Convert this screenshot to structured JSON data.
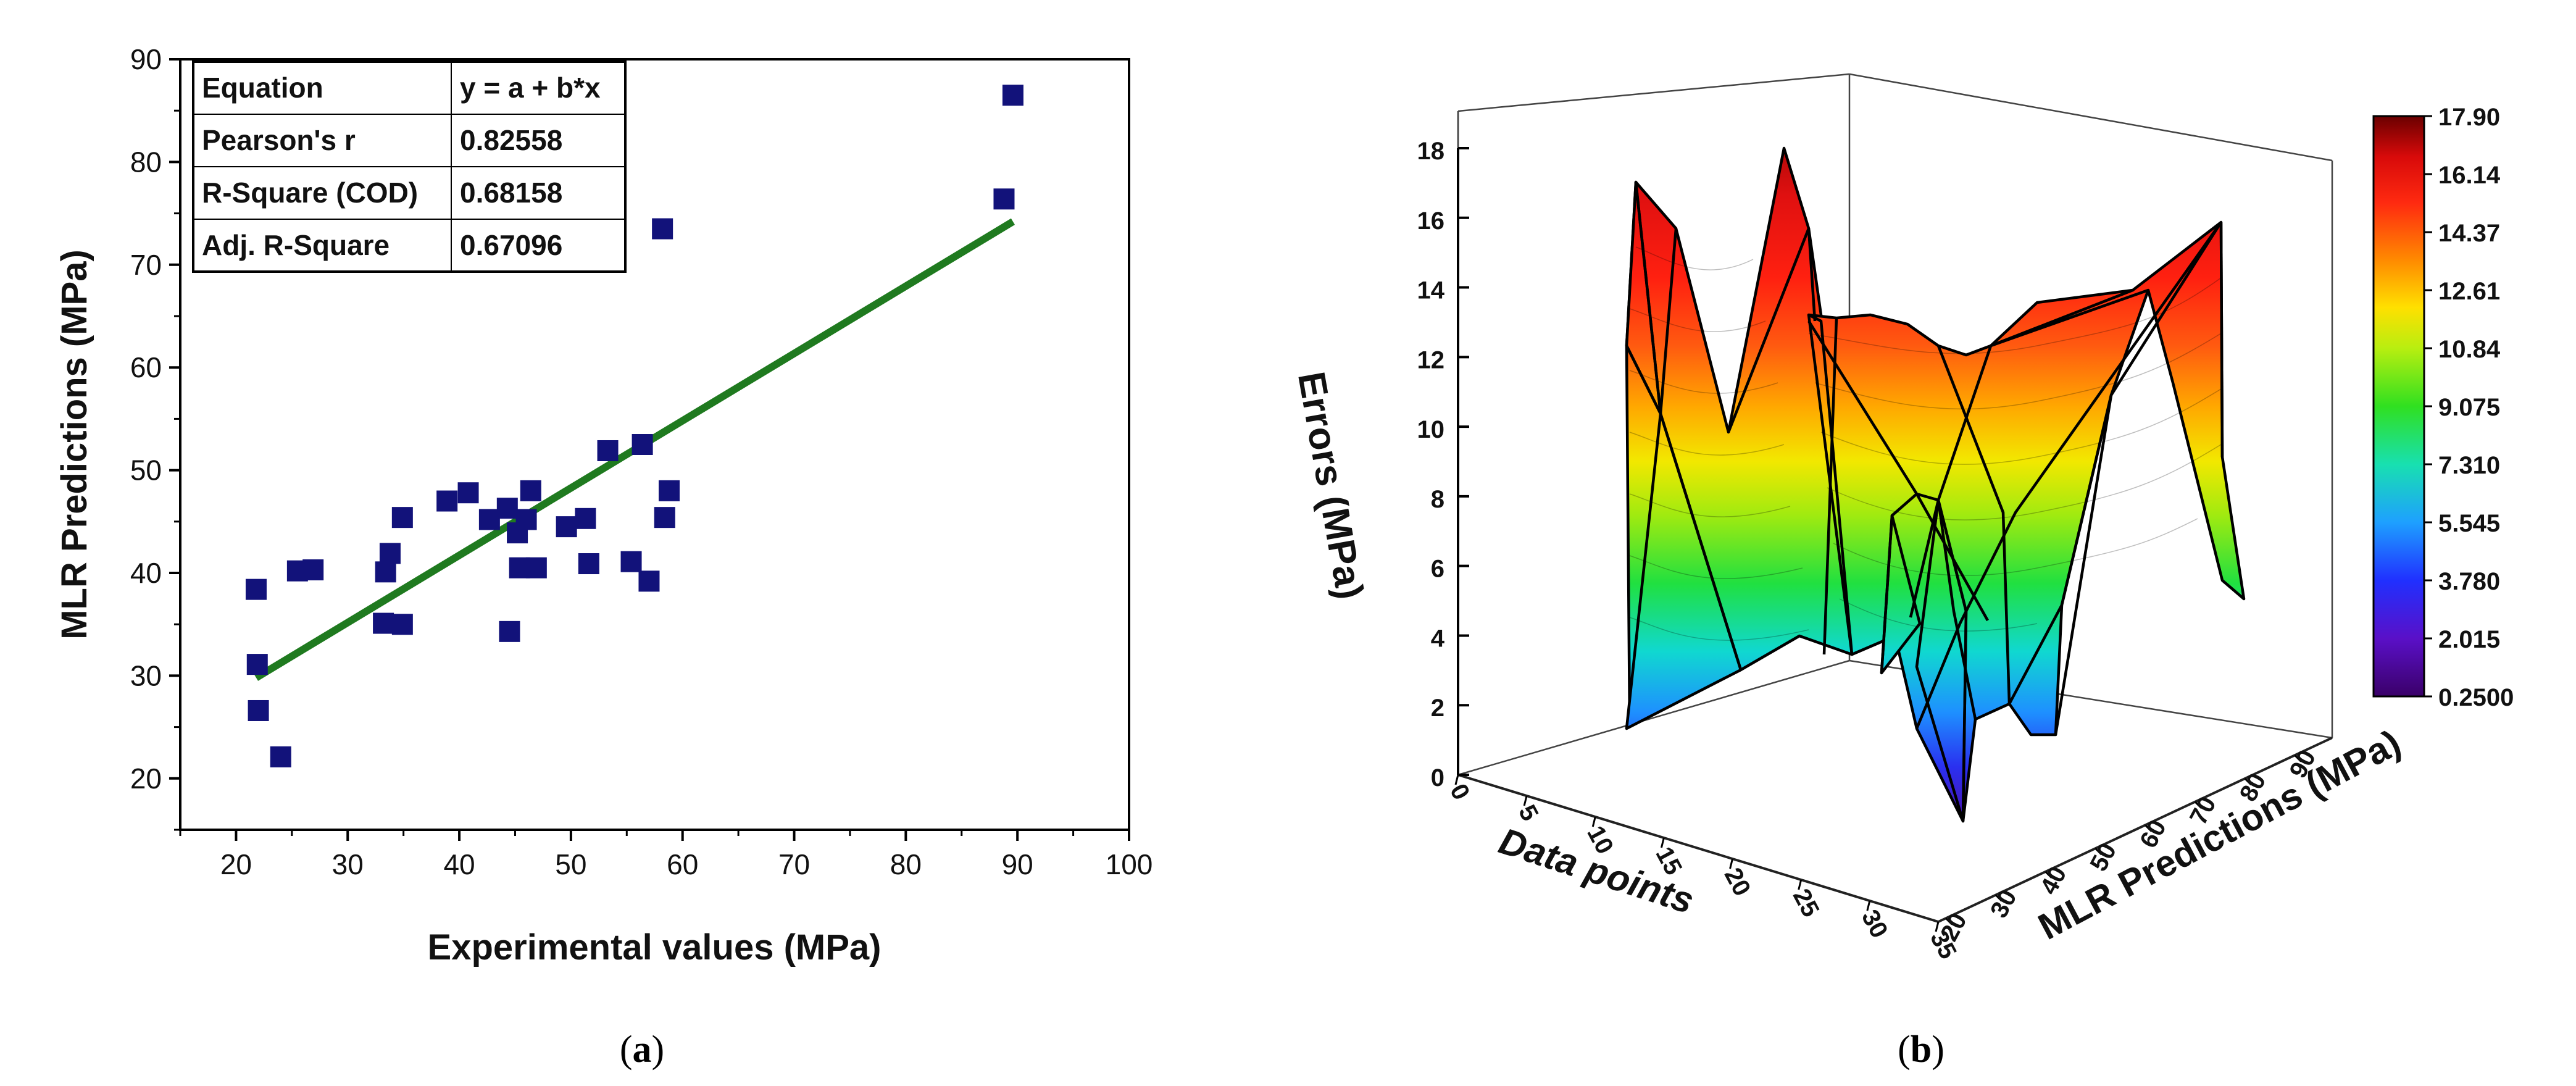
{
  "chart_data": [
    {
      "type": "scatter",
      "panel": "a",
      "caption": "(a)",
      "xlabel": "Experimental values (MPa)",
      "ylabel": "MLR Predictions (MPa)",
      "xlim": [
        15,
        100
      ],
      "ylim": [
        15,
        90
      ],
      "xticks": [
        20,
        30,
        40,
        50,
        60,
        70,
        80,
        90,
        100
      ],
      "yticks": [
        20,
        30,
        40,
        50,
        60,
        70,
        80,
        90
      ],
      "points": [
        [
          21.8,
          38.4
        ],
        [
          21.9,
          31.1
        ],
        [
          22.0,
          26.6
        ],
        [
          24.0,
          22.1
        ],
        [
          25.5,
          40.2
        ],
        [
          26.9,
          40.3
        ],
        [
          33.2,
          35.1
        ],
        [
          33.4,
          40.1
        ],
        [
          33.8,
          41.9
        ],
        [
          34.9,
          35.0
        ],
        [
          34.9,
          45.4
        ],
        [
          38.9,
          47.0
        ],
        [
          40.8,
          47.8
        ],
        [
          42.7,
          45.2
        ],
        [
          44.3,
          46.3
        ],
        [
          44.5,
          34.3
        ],
        [
          45.2,
          43.9
        ],
        [
          45.4,
          40.5
        ],
        [
          46.0,
          45.2
        ],
        [
          46.4,
          48.0
        ],
        [
          46.9,
          40.5
        ],
        [
          49.6,
          44.5
        ],
        [
          51.3,
          45.3
        ],
        [
          51.6,
          40.9
        ],
        [
          53.3,
          51.9
        ],
        [
          55.4,
          41.1
        ],
        [
          56.4,
          52.5
        ],
        [
          57.0,
          39.2
        ],
        [
          58.2,
          73.5
        ],
        [
          58.4,
          45.4
        ],
        [
          58.8,
          48.0
        ],
        [
          88.8,
          76.4
        ],
        [
          89.6,
          86.5
        ]
      ],
      "fit": {
        "x": [
          21.8,
          89.6
        ],
        "y": [
          29.8,
          74.2
        ],
        "color": "#1f7a1f"
      },
      "marker_color": "#12127a",
      "stats_table": {
        "rows": [
          [
            "Equation",
            "y = a + b*x"
          ],
          [
            "Pearson's r",
            "0.82558"
          ],
          [
            "R-Square (COD)",
            "0.68158"
          ],
          [
            "Adj. R-Square",
            "0.67096"
          ]
        ]
      }
    },
    {
      "type": "surface3d",
      "panel": "b",
      "caption": "(b)",
      "zlabel": "Errors (MPa)",
      "xlabel": "Data points",
      "ylabel": "MLR Predictions (MPa)",
      "zticks": [
        0,
        2,
        4,
        6,
        8,
        10,
        12,
        14,
        16,
        18
      ],
      "xticks": [
        0,
        5,
        10,
        15,
        20,
        25,
        30,
        35
      ],
      "yticks": [
        20,
        30,
        40,
        50,
        60,
        70,
        80,
        90
      ],
      "colorbar_ticks": [
        "17.90",
        "16.14",
        "14.37",
        "12.61",
        "10.84",
        "9.075",
        "7.310",
        "5.545",
        "3.780",
        "2.015",
        "0.2500"
      ],
      "colorbar_range": [
        0.25,
        17.9
      ]
    }
  ]
}
